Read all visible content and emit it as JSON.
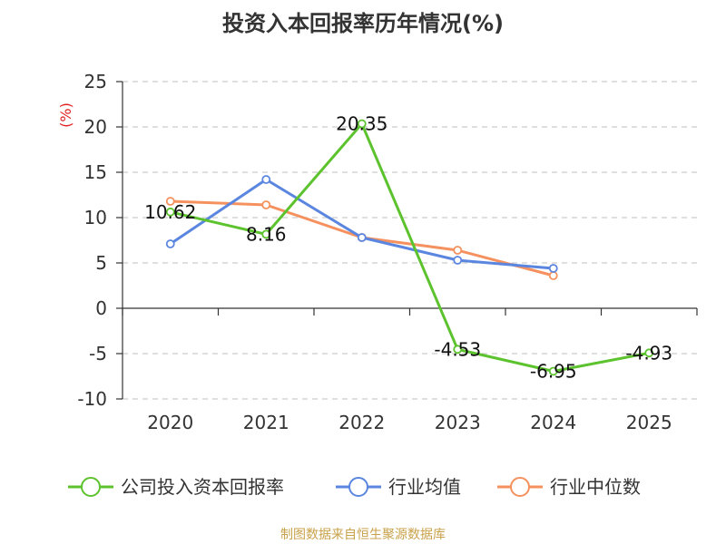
{
  "chart_data": {
    "type": "line",
    "title": "投资入本回报率历年情况(%)",
    "ylabel": "(%)",
    "categories": [
      "2020",
      "2021",
      "2022",
      "2023",
      "2024",
      "2025"
    ],
    "ylim": [
      -10,
      25
    ],
    "yticks": [
      25,
      20,
      15,
      10,
      5,
      0,
      -5,
      -10
    ],
    "grid": true,
    "legend_position": "bottom",
    "series": [
      {
        "name": "公司投入资本回报率",
        "color": "#5cc22e",
        "values": [
          10.62,
          8.16,
          20.35,
          -4.53,
          -6.95,
          -4.93
        ],
        "labels": [
          "10.62",
          "8.16",
          "20.35",
          "-4.53",
          "-6.95",
          "-4.93"
        ]
      },
      {
        "name": "行业均值",
        "color": "#5b86e0",
        "values": [
          7.1,
          14.2,
          7.8,
          5.3,
          4.4,
          null
        ]
      },
      {
        "name": "行业中位数",
        "color": "#f5915e",
        "values": [
          11.8,
          11.4,
          7.8,
          6.4,
          3.6,
          null
        ]
      }
    ]
  },
  "source_text": "制图数据来自恒生聚源数据库"
}
